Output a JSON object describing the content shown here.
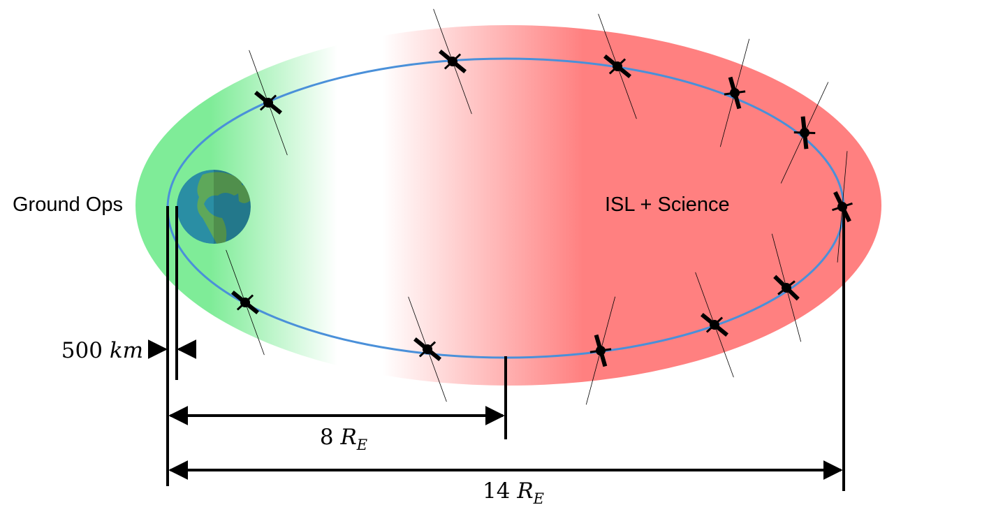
{
  "labels": {
    "left_region": "Ground Ops",
    "right_region": "ISL + Science",
    "altitude": {
      "number": "500",
      "unit": "km"
    },
    "apogee_offset": {
      "number": "8",
      "symbol": "R",
      "subscript": "E"
    },
    "major_axis": {
      "number": "14",
      "symbol": "R",
      "subscript": "E"
    }
  }
}
